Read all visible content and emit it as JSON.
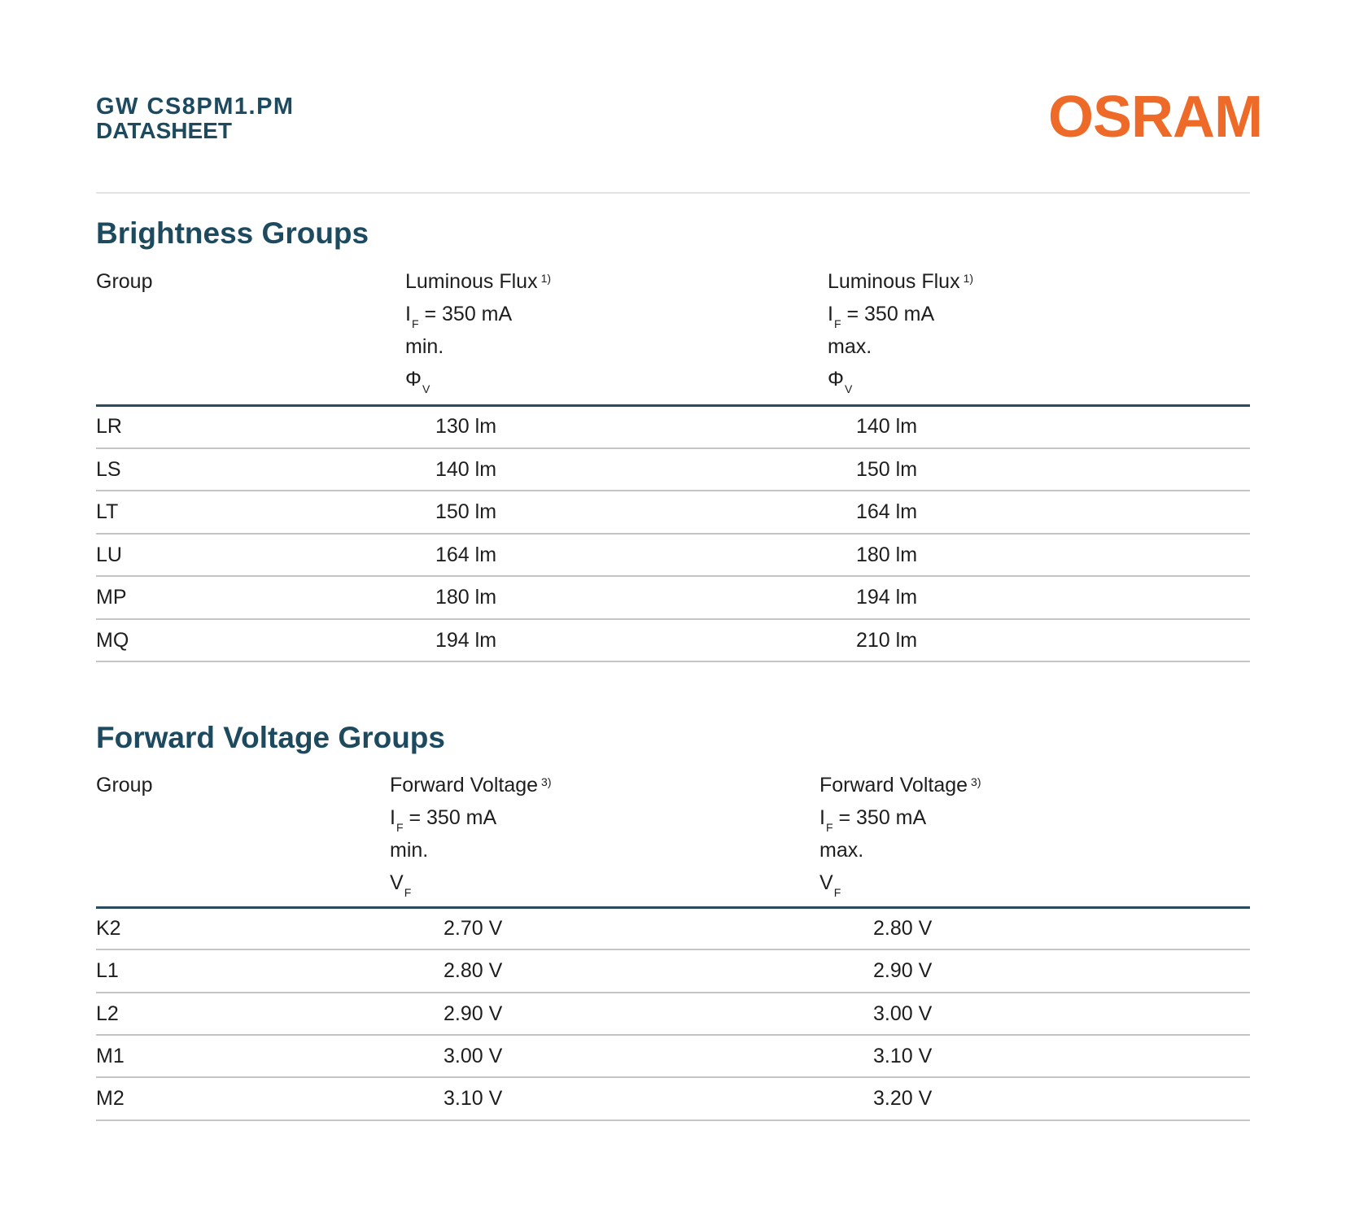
{
  "header": {
    "product": "GW CS8PM1.PM",
    "doc_type": "DATASHEET",
    "logo": "OSRAM",
    "brand_color": "#ee6a28",
    "title_color": "#1d4a5e"
  },
  "brightness": {
    "title": "Brightness Groups",
    "headers": {
      "group": "Group",
      "min": {
        "line1": "Luminous Flux",
        "note": "1)",
        "line2_symbol": "I",
        "line2_sub": "F",
        "line2_rest": " = 350 mA",
        "line3": "min.",
        "line4_symbol": "Φ",
        "line4_sub": "V"
      },
      "max": {
        "line1": "Luminous Flux",
        "note": "1)",
        "line2_symbol": "I",
        "line2_sub": "F",
        "line2_rest": " = 350 mA",
        "line3": "max.",
        "line4_symbol": "Φ",
        "line4_sub": "V"
      }
    },
    "rows": [
      {
        "group": "LR",
        "min": "130 lm",
        "max": "140 lm"
      },
      {
        "group": "LS",
        "min": "140 lm",
        "max": "150 lm"
      },
      {
        "group": "LT",
        "min": "150 lm",
        "max": "164 lm"
      },
      {
        "group": "LU",
        "min": "164 lm",
        "max": "180 lm"
      },
      {
        "group": "MP",
        "min": "180 lm",
        "max": "194 lm"
      },
      {
        "group": "MQ",
        "min": "194 lm",
        "max": "210 lm"
      }
    ]
  },
  "voltage": {
    "title": "Forward Voltage Groups",
    "headers": {
      "group": "Group",
      "min": {
        "line1": "Forward Voltage",
        "note": "3)",
        "line2_symbol": "I",
        "line2_sub": "F",
        "line2_rest": " = 350 mA",
        "line3": "min.",
        "line4_symbol": "V",
        "line4_sub": "F"
      },
      "max": {
        "line1": "Forward Voltage",
        "note": "3)",
        "line2_symbol": "I",
        "line2_sub": "F",
        "line2_rest": " = 350 mA",
        "line3": "max.",
        "line4_symbol": "V",
        "line4_sub": "F"
      }
    },
    "rows": [
      {
        "group": "K2",
        "min": "2.70 V",
        "max": "2.80 V"
      },
      {
        "group": "L1",
        "min": "2.80 V",
        "max": "2.90 V"
      },
      {
        "group": "L2",
        "min": "2.90 V",
        "max": "3.00 V"
      },
      {
        "group": "M1",
        "min": "3.00 V",
        "max": "3.10 V"
      },
      {
        "group": "M2",
        "min": "3.10 V",
        "max": "3.20 V"
      }
    ]
  }
}
